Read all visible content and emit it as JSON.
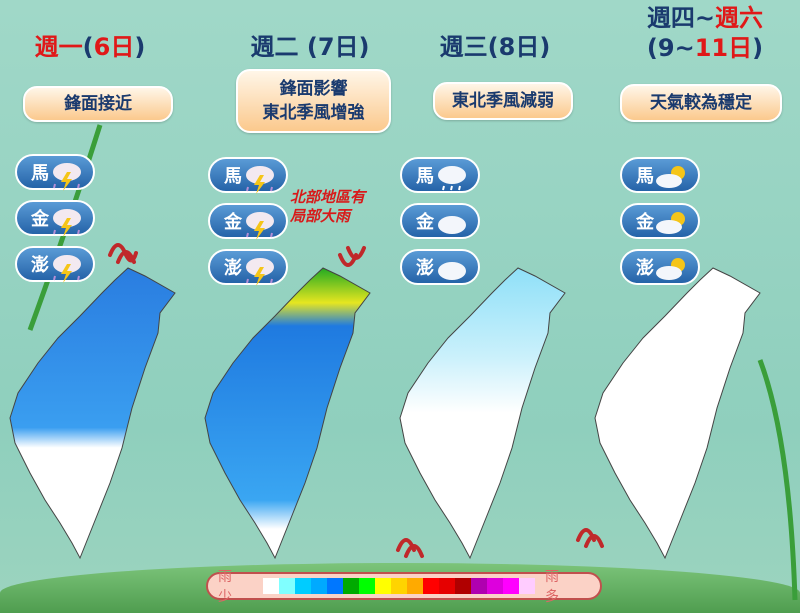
{
  "days": [
    {
      "day": "週一",
      "open": "(",
      "date": "6日",
      "close": ")",
      "summary": [
        "鋒面接近"
      ],
      "islands": [
        {
          "name": "馬",
          "icon": "thunderstorm-rain-icon"
        },
        {
          "name": "金",
          "icon": "thunderstorm-rain-icon"
        },
        {
          "name": "澎",
          "icon": "thunderstorm-rain-icon"
        }
      ]
    },
    {
      "day": "週二 (7日)",
      "summary": [
        "鋒面影響",
        "東北季風增強"
      ],
      "islands": [
        {
          "name": "馬",
          "icon": "thunderstorm-rain-icon"
        },
        {
          "name": "金",
          "icon": "thunderstorm-rain-icon"
        },
        {
          "name": "澎",
          "icon": "thunderstorm-rain-icon"
        }
      ],
      "note": [
        "北部地區有",
        "局部大雨"
      ]
    },
    {
      "day": "週三(8日)",
      "summary": [
        "東北季風減弱"
      ],
      "islands": [
        {
          "name": "馬",
          "icon": "cloud-rain-icon"
        },
        {
          "name": "金",
          "icon": "cloud-icon"
        },
        {
          "name": "澎",
          "icon": "cloud-icon"
        }
      ]
    },
    {
      "day_a": "週四~",
      "day_b": "週六",
      "date_a": "(9~",
      "date_b": "11日",
      "date_c": ")",
      "summary": [
        "天氣較為穩定"
      ],
      "islands": [
        {
          "name": "馬",
          "icon": "sun-cloud-icon"
        },
        {
          "name": "金",
          "icon": "sun-cloud-icon"
        },
        {
          "name": "澎",
          "icon": "sun-cloud-icon"
        }
      ]
    }
  ],
  "legend": {
    "low": "雨 少",
    "high": "雨 多",
    "colors": [
      "#ffffff",
      "#80ffff",
      "#00ccff",
      "#00aaff",
      "#0077ff",
      "#00aa00",
      "#00ff00",
      "#ffff00",
      "#ffd400",
      "#ffaa00",
      "#ff0000",
      "#e60000",
      "#b00000",
      "#b000b0",
      "#dd00dd",
      "#ff00ff",
      "#ffccff"
    ]
  },
  "colors": {
    "title": "#1a3a6e",
    "accent": "#e01818"
  }
}
